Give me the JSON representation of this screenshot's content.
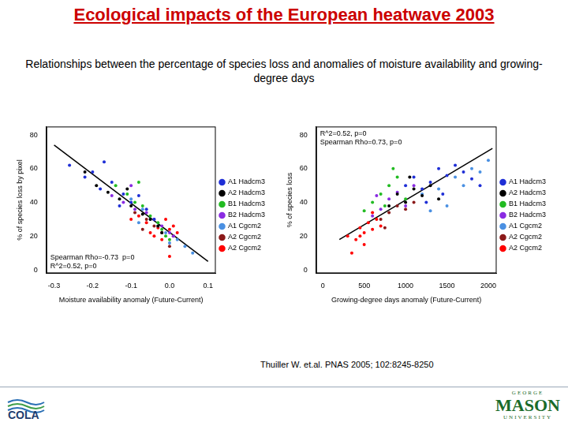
{
  "title": "Ecological impacts of the European heatwave 2003",
  "subtitle": "Relationships between the percentage of species loss and anomalies of moisture availability and growing-degree days",
  "citation": "Thuiller W. et.al. PNAS 2005; 102:8245-8250",
  "footer": {
    "left_logo": "COLA",
    "right_logo": [
      "GEORGE",
      "MASON",
      "UNIVERSITY"
    ]
  },
  "chart_data": [
    {
      "type": "scatter",
      "xlabel": "Moisture availability anomaly (Future-Current)",
      "ylabel": "% of species loss by pixel",
      "xlim": [
        -0.32,
        0.12
      ],
      "ylim": [
        -2,
        85
      ],
      "xticks": [
        -0.3,
        -0.2,
        -0.1,
        {
          "value": 0,
          "label": "0.0"
        },
        0.1
      ],
      "yticks": [
        0,
        20,
        40,
        60,
        80
      ],
      "grid": false,
      "legend": "right",
      "marker": "circle",
      "annotations": [
        "Spearman Rho=-0.73  p=0",
        "R^2=0.52, p=0"
      ],
      "fit_line": {
        "x": [
          -0.3,
          0.1
        ],
        "y": [
          74,
          5
        ]
      },
      "series": [
        {
          "name": "A1 Hadcm3",
          "color": "#1f2fd6",
          "x": [
            -0.26,
            -0.22,
            -0.2,
            -0.18,
            -0.15,
            -0.12,
            -0.1,
            -0.08,
            -0.06,
            -0.04,
            -0.17,
            -0.13
          ],
          "y": [
            62,
            55,
            58,
            48,
            52,
            45,
            40,
            44,
            36,
            30,
            64,
            38
          ]
        },
        {
          "name": "A2 Hadcm3",
          "color": "#000000",
          "x": [
            -0.22,
            -0.19,
            -0.16,
            -0.13,
            -0.1,
            -0.07,
            -0.05,
            -0.03,
            -0.11,
            -0.02
          ],
          "y": [
            58,
            50,
            46,
            42,
            38,
            33,
            30,
            26,
            48,
            22
          ]
        },
        {
          "name": "B1 Hadcm3",
          "color": "#22bb22",
          "x": [
            -0.14,
            -0.11,
            -0.09,
            -0.07,
            -0.05,
            -0.03,
            -0.02,
            -0.01,
            -0.08,
            0.0
          ],
          "y": [
            50,
            45,
            40,
            38,
            32,
            28,
            24,
            20,
            52,
            18
          ]
        },
        {
          "name": "B2 Hadcm3",
          "color": "#8a2be2",
          "x": [
            -0.15,
            -0.12,
            -0.09,
            -0.06,
            -0.04,
            -0.02,
            0.0,
            -0.1,
            0.01
          ],
          "y": [
            44,
            40,
            36,
            34,
            30,
            26,
            22,
            50,
            20
          ]
        },
        {
          "name": "A1 Cgcm2",
          "color": "#4a90e2",
          "x": [
            -0.1,
            -0.07,
            -0.05,
            -0.03,
            -0.01,
            0.0,
            0.02,
            0.04,
            0.06,
            -0.08
          ],
          "y": [
            42,
            36,
            30,
            26,
            22,
            16,
            18,
            14,
            10,
            28
          ]
        },
        {
          "name": "A2 Cgcm2",
          "color": "#8b1a1a",
          "x": [
            -0.09,
            -0.06,
            -0.04,
            -0.02,
            0.0,
            0.01,
            -0.07
          ],
          "y": [
            34,
            30,
            26,
            22,
            14,
            20,
            24
          ]
        },
        {
          "name": "A2 Cgcm2",
          "color": "#ff0000",
          "x": [
            -0.1,
            -0.08,
            -0.06,
            -0.05,
            -0.03,
            -0.02,
            0.0,
            0.01,
            0.0,
            0.02,
            -0.01,
            -0.04
          ],
          "y": [
            30,
            32,
            28,
            22,
            25,
            18,
            24,
            26,
            8,
            22,
            30,
            20
          ]
        }
      ]
    },
    {
      "type": "scatter",
      "xlabel": "Growing-degree days anomaly (Future-Current)",
      "ylabel": "% of species loss",
      "xlim": [
        -80,
        2100
      ],
      "ylim": [
        -2,
        85
      ],
      "xticks": [
        0,
        500,
        1000,
        1500,
        2000
      ],
      "yticks": [
        0,
        20,
        40,
        60,
        80
      ],
      "grid": false,
      "legend": "right",
      "marker": "circle",
      "annotations": [
        "R^2=0.52, p=0",
        "Spearman Rho=0.73, p=0"
      ],
      "fit_line": {
        "x": [
          200,
          2050
        ],
        "y": [
          18,
          72
        ]
      },
      "series": [
        {
          "name": "A1 Hadcm3",
          "color": "#1f2fd6",
          "x": [
            1000,
            1100,
            1200,
            1300,
            1400,
            1500,
            1600,
            1700,
            1800,
            1900,
            1250,
            1450
          ],
          "y": [
            50,
            55,
            48,
            52,
            60,
            56,
            62,
            58,
            54,
            50,
            40,
            45
          ]
        },
        {
          "name": "A2 Hadcm3",
          "color": "#000000",
          "x": [
            900,
            1000,
            1100,
            1200,
            1300,
            1400,
            800,
            1050
          ],
          "y": [
            45,
            40,
            48,
            44,
            50,
            42,
            38,
            55
          ]
        },
        {
          "name": "B1 Hadcm3",
          "color": "#22bb22",
          "x": [
            500,
            600,
            700,
            800,
            900,
            1000,
            750,
            850
          ],
          "y": [
            35,
            40,
            45,
            50,
            55,
            42,
            38,
            60
          ]
        },
        {
          "name": "B2 Hadcm3",
          "color": "#8a2be2",
          "x": [
            600,
            700,
            800,
            900,
            1000,
            1100,
            650
          ],
          "y": [
            32,
            36,
            42,
            46,
            38,
            50,
            44
          ]
        },
        {
          "name": "A1 Cgcm2",
          "color": "#4a90e2",
          "x": [
            1200,
            1400,
            1600,
            1800,
            2000,
            1500,
            1700,
            1900,
            1300
          ],
          "y": [
            45,
            48,
            55,
            60,
            65,
            38,
            50,
            58,
            35
          ]
        },
        {
          "name": "A2 Cgcm2",
          "color": "#8b1a1a",
          "x": [
            700,
            800,
            900,
            1000,
            1100,
            750
          ],
          "y": [
            30,
            34,
            38,
            36,
            40,
            25
          ]
        },
        {
          "name": "A2 Cgcm2",
          "color": "#ff0000",
          "x": [
            300,
            400,
            450,
            500,
            550,
            600,
            650,
            500,
            700,
            350,
            600,
            450
          ],
          "y": [
            20,
            18,
            25,
            22,
            28,
            24,
            30,
            15,
            26,
            10,
            34,
            20
          ]
        }
      ]
    }
  ]
}
